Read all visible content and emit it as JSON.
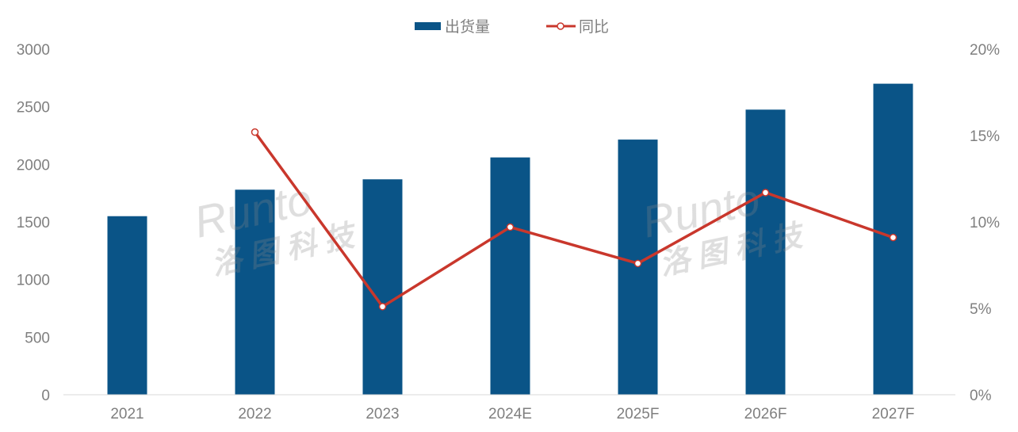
{
  "chart_data": {
    "type": "bar+line",
    "categories": [
      "2021",
      "2022",
      "2023",
      "2024E",
      "2025F",
      "2026F",
      "2027F"
    ],
    "series": [
      {
        "name": "出货量",
        "type": "bar",
        "axis": "left",
        "color": "#0a5487",
        "values": [
          1550,
          1780,
          1870,
          2060,
          2215,
          2475,
          2700
        ]
      },
      {
        "name": "同比",
        "type": "line",
        "axis": "right",
        "color": "#c9372c",
        "values": [
          null,
          15.2,
          5.1,
          9.7,
          7.6,
          11.7,
          9.1
        ]
      }
    ],
    "y_left": {
      "range": [
        0,
        3000
      ],
      "ticks": [
        "0",
        "500",
        "1000",
        "1500",
        "2000",
        "2500",
        "3000"
      ]
    },
    "y_right": {
      "range": [
        0,
        20
      ],
      "ticks": [
        "0%",
        "5%",
        "10%",
        "15%",
        "20%"
      ]
    },
    "legend_position": "top",
    "grid": false
  },
  "watermark": {
    "latin": "Runto",
    "chinese": "洛图科技"
  }
}
